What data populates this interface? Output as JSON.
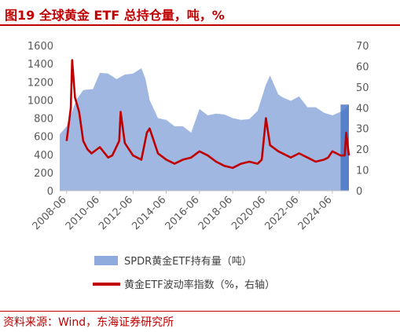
{
  "header": {
    "title": "图19  全球黄金 ETF 总持仓量，吨，%"
  },
  "footer": {
    "source": "资料来源：Wind，东海证券研究所"
  },
  "chart_data": {
    "type": "bar+line",
    "title": "图19  全球黄金 ETF 总持仓量，吨，%",
    "x_tick_labels": [
      "2008-06",
      "2010-06",
      "2012-06",
      "2014-06",
      "2016-06",
      "2018-06",
      "2020-06",
      "2022-06",
      "2024-06"
    ],
    "x_range": [
      "2008-01",
      "2025-06"
    ],
    "y_left": {
      "lim": [
        0,
        1600
      ],
      "ticks": [
        0,
        200,
        400,
        600,
        800,
        1000,
        1200,
        1400,
        1600
      ]
    },
    "y_right": {
      "lim": [
        0,
        70
      ],
      "ticks": [
        0,
        10,
        20,
        30,
        40,
        50,
        60,
        70
      ]
    },
    "grid": false,
    "legend_position": "bottom",
    "series": [
      {
        "name": "SPDR黄金ETF持有量（吨）",
        "type": "area-bar",
        "axis": "left",
        "color": "#8faadc",
        "x": [
          "2008-01",
          "2008-06",
          "2009-01",
          "2009-06",
          "2010-01",
          "2010-06",
          "2010-12",
          "2011-06",
          "2011-12",
          "2012-06",
          "2012-12",
          "2013-03",
          "2013-06",
          "2013-12",
          "2014-06",
          "2014-12",
          "2015-06",
          "2015-12",
          "2016-06",
          "2016-12",
          "2017-06",
          "2017-12",
          "2018-06",
          "2018-12",
          "2019-06",
          "2019-12",
          "2020-06",
          "2020-09",
          "2021-03",
          "2021-06",
          "2021-12",
          "2022-06",
          "2022-12",
          "2023-06",
          "2023-12",
          "2024-06",
          "2024-12",
          "2025-03",
          "2025-06"
        ],
        "values": [
          620,
          710,
          1000,
          1110,
          1120,
          1300,
          1290,
          1230,
          1280,
          1290,
          1350,
          1230,
          1000,
          800,
          780,
          710,
          710,
          640,
          900,
          830,
          850,
          840,
          800,
          780,
          790,
          880,
          1170,
          1270,
          1060,
          1030,
          990,
          1040,
          920,
          920,
          860,
          830,
          870,
          900,
          950
        ]
      },
      {
        "name": "黄金ETF波动率指数（%，右轴）",
        "type": "line",
        "axis": "right",
        "color": "#c00000",
        "x": [
          "2008-06",
          "2008-09",
          "2008-10",
          "2008-12",
          "2009-03",
          "2009-06",
          "2009-09",
          "2009-12",
          "2010-06",
          "2010-12",
          "2011-03",
          "2011-08",
          "2011-09",
          "2011-12",
          "2012-06",
          "2012-12",
          "2013-04",
          "2013-06",
          "2013-12",
          "2014-06",
          "2014-12",
          "2015-06",
          "2015-12",
          "2016-06",
          "2016-12",
          "2017-06",
          "2017-12",
          "2018-06",
          "2018-12",
          "2019-06",
          "2019-12",
          "2020-03",
          "2020-06",
          "2020-09",
          "2021-03",
          "2021-06",
          "2021-12",
          "2022-03",
          "2022-06",
          "2022-12",
          "2023-06",
          "2023-12",
          "2024-03",
          "2024-06",
          "2024-09",
          "2024-12",
          "2025-03",
          "2025-04",
          "2025-06"
        ],
        "values": [
          24,
          40,
          63,
          45,
          38,
          24,
          20,
          18,
          21,
          16,
          17,
          24,
          38,
          23,
          17,
          15,
          28,
          30,
          18,
          15,
          13,
          15,
          16,
          19,
          17,
          14,
          12,
          11,
          13,
          14,
          13,
          15,
          35,
          22,
          19,
          18,
          16,
          17,
          18,
          16,
          14,
          15,
          16,
          19,
          18,
          17,
          17,
          28,
          17
        ]
      }
    ]
  }
}
